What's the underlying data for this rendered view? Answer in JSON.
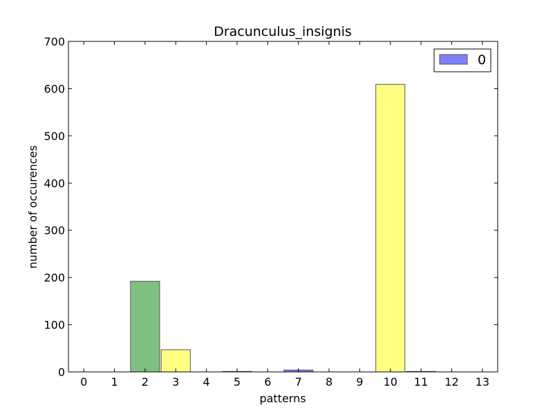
{
  "chart_data": {
    "type": "bar",
    "title": "Dracunculus_insignis",
    "xlabel": "patterns",
    "ylabel": "number of occurences",
    "categories": [
      "0",
      "1",
      "2",
      "3",
      "4",
      "5",
      "6",
      "7",
      "8",
      "9",
      "10",
      "11",
      "12",
      "13"
    ],
    "values": [
      0,
      0,
      192,
      47,
      0,
      1,
      0,
      4,
      0,
      0,
      609,
      1,
      0,
      0
    ],
    "bar_colors": [
      "#8080ff",
      "#8080ff",
      "#80c080",
      "#ffff80",
      "#8080ff",
      "#8080ff",
      "#8080ff",
      "#8080ff",
      "#8080ff",
      "#8080ff",
      "#ffff80",
      "#8080ff",
      "#8080ff",
      "#8080ff"
    ],
    "ylim": [
      0,
      700
    ],
    "yticks": [
      0,
      100,
      200,
      300,
      400,
      500,
      600,
      700
    ],
    "grid": false,
    "legend": {
      "placement": "top-right",
      "entries": [
        {
          "label": "0",
          "color": "#8080ff"
        }
      ]
    }
  }
}
